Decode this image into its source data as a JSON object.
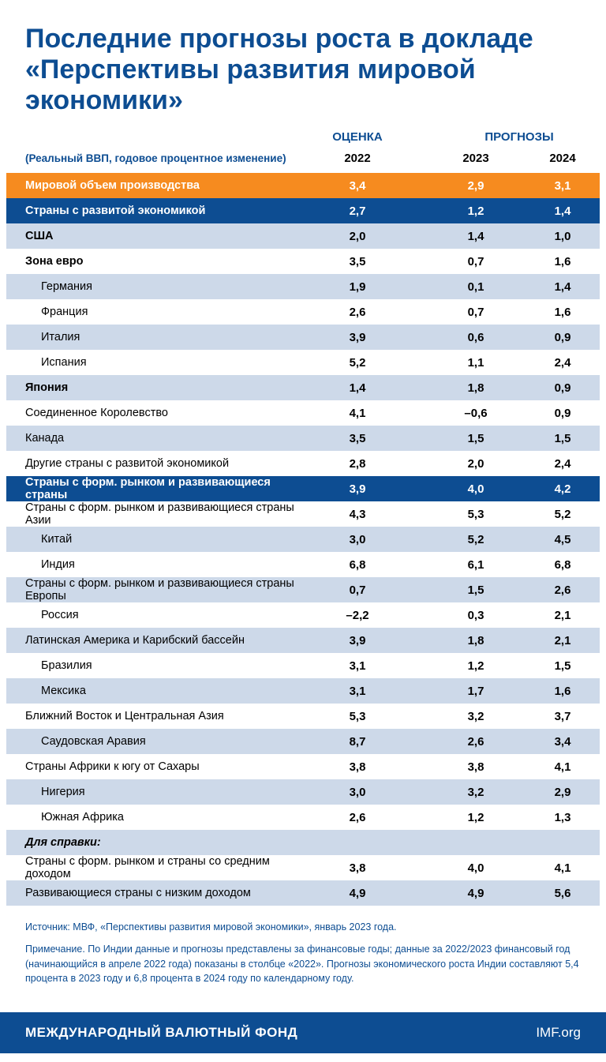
{
  "title": "Последние прогнозы роста в докладе «Перспективы развития мировой экономики»",
  "headers": {
    "estimate": "ОЦЕНКА",
    "forecast": "ПРОГНОЗЫ",
    "subtitle": "(Реальный ВВП, годовое процентное изменение)",
    "y2022": "2022",
    "y2023": "2023",
    "y2024": "2024"
  },
  "rows": [
    {
      "label": "Мировой объем производства",
      "v": [
        "3,4",
        "2,9",
        "3,1"
      ],
      "variant": "orange",
      "bold": true
    },
    {
      "label": "Страны с развитой экономикой",
      "v": [
        "2,7",
        "1,2",
        "1,4"
      ],
      "variant": "darkblue",
      "bold": true
    },
    {
      "label": "США",
      "v": [
        "2,0",
        "1,4",
        "1,0"
      ],
      "variant": "lightblue",
      "bold": true
    },
    {
      "label": "Зона евро",
      "v": [
        "3,5",
        "0,7",
        "1,6"
      ],
      "variant": "white",
      "bold": true
    },
    {
      "label": "Германия",
      "v": [
        "1,9",
        "0,1",
        "1,4"
      ],
      "variant": "lightblue",
      "indent": 1
    },
    {
      "label": "Франция",
      "v": [
        "2,6",
        "0,7",
        "1,6"
      ],
      "variant": "white",
      "indent": 1
    },
    {
      "label": "Италия",
      "v": [
        "3,9",
        "0,6",
        "0,9"
      ],
      "variant": "lightblue",
      "indent": 1
    },
    {
      "label": "Испания",
      "v": [
        "5,2",
        "1,1",
        "2,4"
      ],
      "variant": "white",
      "indent": 1
    },
    {
      "label": "Япония",
      "v": [
        "1,4",
        "1,8",
        "0,9"
      ],
      "variant": "lightblue",
      "bold": true
    },
    {
      "label": "Соединенное Королевство",
      "v": [
        "4,1",
        "–0,6",
        "0,9"
      ],
      "variant": "white"
    },
    {
      "label": "Канада",
      "v": [
        "3,5",
        "1,5",
        "1,5"
      ],
      "variant": "lightblue"
    },
    {
      "label": "Другие страны с развитой экономикой",
      "v": [
        "2,8",
        "2,0",
        "2,4"
      ],
      "variant": "white"
    },
    {
      "label": "Страны с форм. рынком и развивающиеся страны",
      "v": [
        "3,9",
        "4,0",
        "4,2"
      ],
      "variant": "darkblue",
      "bold": true
    },
    {
      "label": "Страны с форм. рынком и развивающиеся страны Азии",
      "v": [
        "4,3",
        "5,3",
        "5,2"
      ],
      "variant": "white"
    },
    {
      "label": "Китай",
      "v": [
        "3,0",
        "5,2",
        "4,5"
      ],
      "variant": "lightblue",
      "indent": 1
    },
    {
      "label": "Индия",
      "v": [
        "6,8",
        "6,1",
        "6,8"
      ],
      "variant": "white",
      "indent": 1
    },
    {
      "label": "Страны с форм. рынком и развивающиеся страны Европы",
      "v": [
        "0,7",
        "1,5",
        "2,6"
      ],
      "variant": "lightblue"
    },
    {
      "label": "Россия",
      "v": [
        "–2,2",
        "0,3",
        "2,1"
      ],
      "variant": "white",
      "indent": 1
    },
    {
      "label": "Латинская Америка и Карибский бассейн",
      "v": [
        "3,9",
        "1,8",
        "2,1"
      ],
      "variant": "lightblue"
    },
    {
      "label": "Бразилия",
      "v": [
        "3,1",
        "1,2",
        "1,5"
      ],
      "variant": "white",
      "indent": 1
    },
    {
      "label": "Мексика",
      "v": [
        "3,1",
        "1,7",
        "1,6"
      ],
      "variant": "lightblue",
      "indent": 1
    },
    {
      "label": "Ближний Восток и Центральная Азия",
      "v": [
        "5,3",
        "3,2",
        "3,7"
      ],
      "variant": "white"
    },
    {
      "label": "Саудовская Аравия",
      "v": [
        "8,7",
        "2,6",
        "3,4"
      ],
      "variant": "lightblue",
      "indent": 1
    },
    {
      "label": "Страны Африки к югу от Сахары",
      "v": [
        "3,8",
        "3,8",
        "4,1"
      ],
      "variant": "white"
    },
    {
      "label": "Нигерия",
      "v": [
        "3,0",
        "3,2",
        "2,9"
      ],
      "variant": "lightblue",
      "indent": 1
    },
    {
      "label": "Южная Африка",
      "v": [
        "2,6",
        "1,2",
        "1,3"
      ],
      "variant": "white",
      "indent": 1
    },
    {
      "label": "Для справки:",
      "v": [
        "",
        "",
        ""
      ],
      "variant": "lightblue",
      "italic": true
    },
    {
      "label": "Страны с форм. рынком и страны со средним доходом",
      "v": [
        "3,8",
        "4,0",
        "4,1"
      ],
      "variant": "white"
    },
    {
      "label": "Развивающиеся страны с низким доходом",
      "v": [
        "4,9",
        "4,9",
        "5,6"
      ],
      "variant": "lightblue"
    }
  ],
  "notes": {
    "source": "Источник: МВФ, «Перспективы развития мировой экономики», январь 2023 года.",
    "note": "Примечание. По Индии данные и прогнозы представлены за финансовые годы; данные за 2022/2023 финансовый год (начинающийся в апреле 2022 года) показаны в столбце «2022». Прогнозы экономического роста Индии составляют 5,4 процента в 2023 году и 6,8 процента в 2024 году по календарному году."
  },
  "footer": {
    "org": "МЕЖДУНАРОДНЫЙ ВАЛЮТНЫЙ ФОНД",
    "url": "IMF.org"
  },
  "colors": {
    "primary_blue": "#0d4d92",
    "orange": "#f68b1f",
    "light_blue": "#cdd9e9",
    "white": "#ffffff"
  }
}
